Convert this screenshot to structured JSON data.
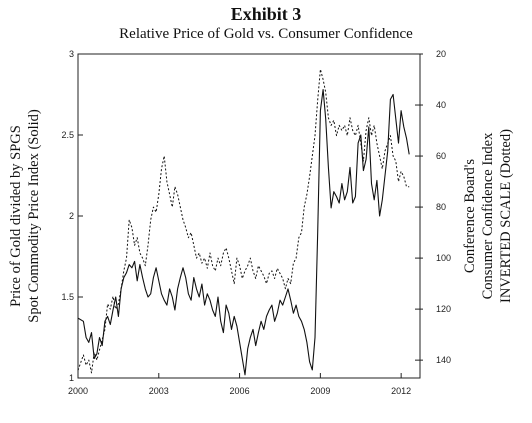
{
  "chart_data": {
    "type": "line",
    "title": "Exhibit 3",
    "subtitle": "Relative Price of Gold vs. Consumer Confidence",
    "y_left_label": [
      "Price of Gold divided by SPGS",
      "Spot Commodity Price Index (Solid)"
    ],
    "y_right_label": [
      "Conference Board's",
      "Consumer Confidence Index",
      "INVERTED SCALE (Dotted)"
    ],
    "x_range": [
      2000,
      2012.7
    ],
    "x_ticks": [
      "2000",
      "2003",
      "2006",
      "2009",
      "2012"
    ],
    "y_left_range": [
      1,
      3
    ],
    "y_left_ticks": [
      "1",
      "1.5",
      "2",
      "2.5",
      "3"
    ],
    "y_right_range": [
      147,
      20
    ],
    "y_right_inverted": true,
    "y_right_ticks": [
      "20",
      "40",
      "60",
      "80",
      "100",
      "120",
      "140"
    ],
    "series": [
      {
        "name": "Price of Gold divided by SPGS Spot Commodity Price Index",
        "axis": "left",
        "style": "solid",
        "x": [
          2000.0,
          2000.2,
          2000.3,
          2000.4,
          2000.5,
          2000.6,
          2000.7,
          2000.8,
          2000.9,
          2001.0,
          2001.1,
          2001.2,
          2001.3,
          2001.4,
          2001.5,
          2001.6,
          2001.7,
          2001.8,
          2001.9,
          2002.0,
          2002.1,
          2002.2,
          2002.3,
          2002.4,
          2002.5,
          2002.6,
          2002.7,
          2002.8,
          2002.9,
          2003.0,
          2003.1,
          2003.2,
          2003.3,
          2003.4,
          2003.5,
          2003.6,
          2003.7,
          2003.8,
          2003.9,
          2004.0,
          2004.1,
          2004.2,
          2004.3,
          2004.4,
          2004.5,
          2004.6,
          2004.7,
          2004.8,
          2004.9,
          2005.0,
          2005.1,
          2005.2,
          2005.3,
          2005.4,
          2005.5,
          2005.6,
          2005.7,
          2005.8,
          2005.9,
          2006.0,
          2006.1,
          2006.2,
          2006.3,
          2006.4,
          2006.5,
          2006.6,
          2006.7,
          2006.8,
          2006.9,
          2007.0,
          2007.1,
          2007.2,
          2007.3,
          2007.4,
          2007.5,
          2007.6,
          2007.7,
          2007.8,
          2007.9,
          2008.0,
          2008.1,
          2008.2,
          2008.3,
          2008.4,
          2008.5,
          2008.6,
          2008.7,
          2008.8,
          2008.9,
          2009.0,
          2009.1,
          2009.2,
          2009.3,
          2009.4,
          2009.5,
          2009.6,
          2009.7,
          2009.8,
          2009.9,
          2010.0,
          2010.1,
          2010.2,
          2010.3,
          2010.4,
          2010.5,
          2010.6,
          2010.7,
          2010.8,
          2010.9,
          2011.0,
          2011.1,
          2011.2,
          2011.3,
          2011.4,
          2011.5,
          2011.6,
          2011.7,
          2011.8,
          2011.9,
          2012.0,
          2012.1,
          2012.2,
          2012.3
        ],
        "y": [
          1.37,
          1.35,
          1.25,
          1.22,
          1.28,
          1.12,
          1.15,
          1.25,
          1.2,
          1.35,
          1.38,
          1.33,
          1.42,
          1.5,
          1.38,
          1.55,
          1.62,
          1.65,
          1.7,
          1.68,
          1.72,
          1.6,
          1.7,
          1.62,
          1.55,
          1.5,
          1.52,
          1.62,
          1.68,
          1.6,
          1.52,
          1.48,
          1.45,
          1.55,
          1.5,
          1.42,
          1.55,
          1.62,
          1.68,
          1.62,
          1.52,
          1.48,
          1.62,
          1.55,
          1.5,
          1.58,
          1.45,
          1.52,
          1.48,
          1.42,
          1.38,
          1.5,
          1.35,
          1.28,
          1.45,
          1.4,
          1.3,
          1.38,
          1.32,
          1.22,
          1.12,
          1.02,
          1.18,
          1.25,
          1.3,
          1.2,
          1.28,
          1.35,
          1.3,
          1.38,
          1.42,
          1.45,
          1.35,
          1.4,
          1.48,
          1.45,
          1.5,
          1.55,
          1.48,
          1.4,
          1.45,
          1.38,
          1.35,
          1.3,
          1.22,
          1.1,
          1.05,
          1.25,
          1.9,
          2.65,
          2.78,
          2.6,
          2.3,
          2.05,
          2.15,
          2.12,
          2.08,
          2.2,
          2.1,
          2.15,
          2.3,
          2.08,
          2.12,
          2.45,
          2.5,
          2.28,
          2.35,
          2.55,
          2.2,
          2.1,
          2.22,
          2.0,
          2.1,
          2.25,
          2.4,
          2.72,
          2.75,
          2.6,
          2.45,
          2.65,
          2.55,
          2.48,
          2.38
        ],
        "color": "#111111"
      },
      {
        "name": "Conference Board's Consumer Confidence Index (inverted)",
        "axis": "right",
        "style": "dotted",
        "x": [
          2000.0,
          2000.2,
          2000.3,
          2000.4,
          2000.5,
          2000.6,
          2000.7,
          2000.8,
          2000.9,
          2001.0,
          2001.1,
          2001.2,
          2001.3,
          2001.4,
          2001.5,
          2001.6,
          2001.7,
          2001.8,
          2001.9,
          2002.0,
          2002.1,
          2002.2,
          2002.3,
          2002.4,
          2002.5,
          2002.6,
          2002.7,
          2002.8,
          2002.9,
          2003.0,
          2003.1,
          2003.2,
          2003.3,
          2003.4,
          2003.5,
          2003.6,
          2003.7,
          2003.8,
          2003.9,
          2004.0,
          2004.1,
          2004.2,
          2004.3,
          2004.4,
          2004.5,
          2004.6,
          2004.7,
          2004.8,
          2004.9,
          2005.0,
          2005.1,
          2005.2,
          2005.3,
          2005.4,
          2005.5,
          2005.6,
          2005.7,
          2005.8,
          2005.9,
          2006.0,
          2006.1,
          2006.2,
          2006.3,
          2006.4,
          2006.5,
          2006.6,
          2006.7,
          2006.8,
          2006.9,
          2007.0,
          2007.1,
          2007.2,
          2007.3,
          2007.4,
          2007.5,
          2007.6,
          2007.7,
          2007.8,
          2007.9,
          2008.0,
          2008.1,
          2008.2,
          2008.3,
          2008.4,
          2008.5,
          2008.6,
          2008.7,
          2008.8,
          2008.9,
          2009.0,
          2009.1,
          2009.2,
          2009.3,
          2009.4,
          2009.5,
          2009.6,
          2009.7,
          2009.8,
          2009.9,
          2010.0,
          2010.1,
          2010.2,
          2010.3,
          2010.4,
          2010.5,
          2010.6,
          2010.7,
          2010.8,
          2010.9,
          2011.0,
          2011.1,
          2011.2,
          2011.3,
          2011.4,
          2011.5,
          2011.6,
          2011.7,
          2011.8,
          2011.9,
          2012.0,
          2012.1,
          2012.2,
          2012.3
        ],
        "y": [
          144,
          138,
          142,
          140,
          145,
          137,
          140,
          136,
          132,
          128,
          118,
          120,
          115,
          120,
          118,
          112,
          105,
          100,
          85,
          88,
          95,
          92,
          98,
          100,
          103,
          95,
          85,
          80,
          82,
          75,
          65,
          60,
          70,
          75,
          80,
          72,
          75,
          80,
          85,
          88,
          92,
          90,
          95,
          100,
          98,
          102,
          100,
          104,
          98,
          103,
          105,
          100,
          103,
          98,
          96,
          100,
          105,
          110,
          100,
          103,
          108,
          105,
          103,
          100,
          105,
          108,
          103,
          105,
          107,
          110,
          106,
          105,
          108,
          104,
          106,
          108,
          112,
          108,
          110,
          102,
          100,
          92,
          90,
          80,
          75,
          68,
          60,
          52,
          38,
          26,
          30,
          35,
          45,
          48,
          46,
          52,
          48,
          50,
          48,
          52,
          45,
          50,
          52,
          48,
          55,
          62,
          50,
          45,
          52,
          48,
          55,
          60,
          65,
          58,
          55,
          52,
          60,
          62,
          70,
          66,
          68,
          72,
          72
        ],
        "color": "#111111"
      }
    ]
  }
}
